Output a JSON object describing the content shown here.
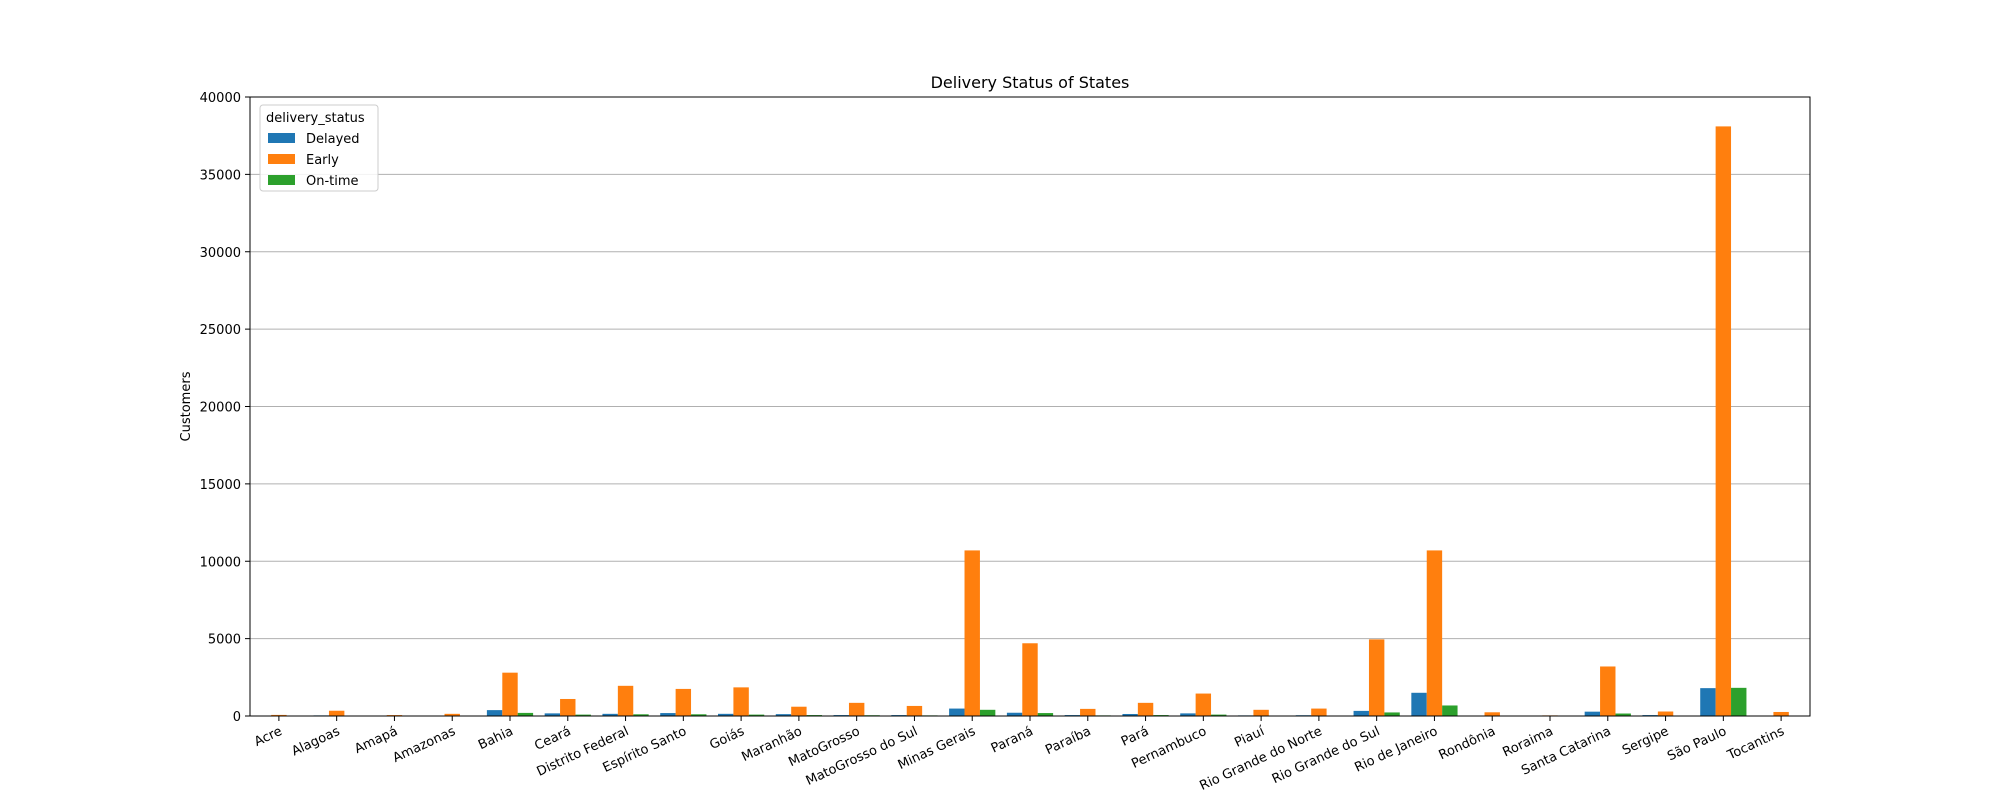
{
  "chart_data": {
    "type": "bar",
    "title": "Delivery Status of States",
    "xlabel": "",
    "ylabel": "Customers",
    "ylim": [
      0,
      40000
    ],
    "yticks": [
      0,
      5000,
      10000,
      15000,
      20000,
      25000,
      30000,
      35000,
      40000
    ],
    "grid": "horizontal",
    "legend_title": "delivery_status",
    "legend_position": "top-left",
    "categories": [
      "Acre",
      "Alagoas",
      "Amapá",
      "Amazonas",
      "Bahia",
      "Ceará",
      "Distrito Federal",
      "Espírito Santo",
      "Goiás",
      "Maranhão",
      "MatoGrosso",
      "MatoGrosso do Sul",
      "Minas Gerais",
      "Paraná",
      "Paraíba",
      "Pará",
      "Pernambuco",
      "Piauí",
      "Rio Grande do Norte",
      "Rio Grande do Sul",
      "Rio de Janeiro",
      "Rondônia",
      "Roraima",
      "Santa Catarina",
      "Sergipe",
      "São Paulo",
      "Tocantins"
    ],
    "series": [
      {
        "name": "Delayed",
        "color": "#1f77b4",
        "values": [
          5,
          40,
          5,
          10,
          380,
          170,
          140,
          190,
          140,
          120,
          60,
          60,
          480,
          210,
          60,
          130,
          170,
          40,
          50,
          330,
          1500,
          20,
          5,
          280,
          60,
          1800,
          20
        ]
      },
      {
        "name": "Early",
        "color": "#ff7f0e",
        "values": [
          70,
          340,
          60,
          140,
          2800,
          1100,
          1950,
          1750,
          1850,
          600,
          850,
          650,
          10700,
          4700,
          460,
          850,
          1450,
          400,
          480,
          4950,
          10700,
          240,
          40,
          3200,
          290,
          38100,
          260
        ]
      },
      {
        "name": "On-time",
        "color": "#2ca02c",
        "values": [
          3,
          25,
          2,
          8,
          200,
          90,
          110,
          110,
          90,
          60,
          50,
          40,
          400,
          190,
          40,
          60,
          90,
          25,
          25,
          230,
          680,
          10,
          2,
          160,
          30,
          1820,
          10
        ]
      }
    ]
  }
}
